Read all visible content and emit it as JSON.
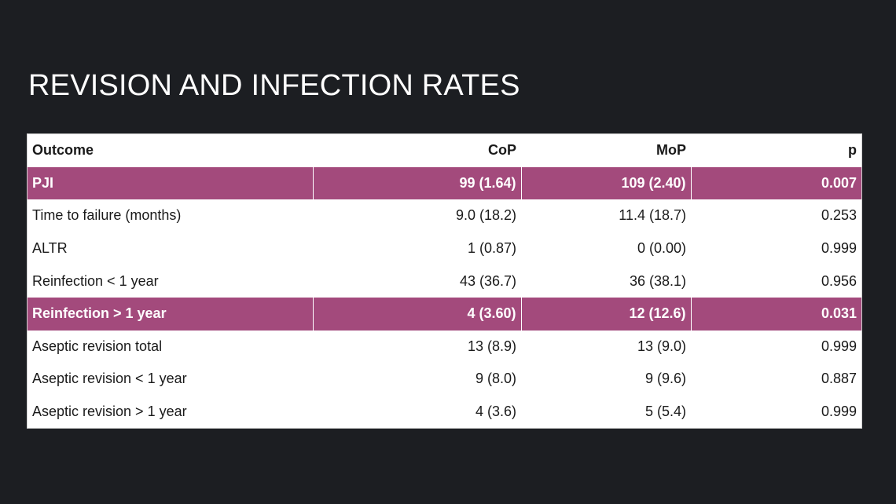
{
  "title": "REVISION AND INFECTION RATES",
  "colors": {
    "background": "#1c1e22",
    "highlight_row": "#a34a7c"
  },
  "table": {
    "headers": [
      "Outcome",
      "CoP",
      "MoP",
      "p"
    ],
    "rows": [
      {
        "cells": [
          "PJI",
          "99 (1.64)",
          "109 (2.40)",
          "0.007"
        ],
        "highlighted": true
      },
      {
        "cells": [
          "Time to failure (months)",
          "9.0 (18.2)",
          "11.4 (18.7)",
          "0.253"
        ],
        "highlighted": false
      },
      {
        "cells": [
          "ALTR",
          "1 (0.87)",
          "0 (0.00)",
          "0.999"
        ],
        "highlighted": false
      },
      {
        "cells": [
          "Reinfection < 1 year",
          "43 (36.7)",
          "36 (38.1)",
          "0.956"
        ],
        "highlighted": false
      },
      {
        "cells": [
          "Reinfection > 1 year",
          "4 (3.60)",
          "12 (12.6)",
          "0.031"
        ],
        "highlighted": true
      },
      {
        "cells": [
          "Aseptic revision total",
          "13 (8.9)",
          "13 (9.0)",
          "0.999"
        ],
        "highlighted": false
      },
      {
        "cells": [
          "Aseptic revision < 1 year",
          "9 (8.0)",
          "9 (9.6)",
          "0.887"
        ],
        "highlighted": false
      },
      {
        "cells": [
          "Aseptic revision > 1 year",
          "4 (3.6)",
          "5 (5.4)",
          "0.999"
        ],
        "highlighted": false
      }
    ]
  }
}
